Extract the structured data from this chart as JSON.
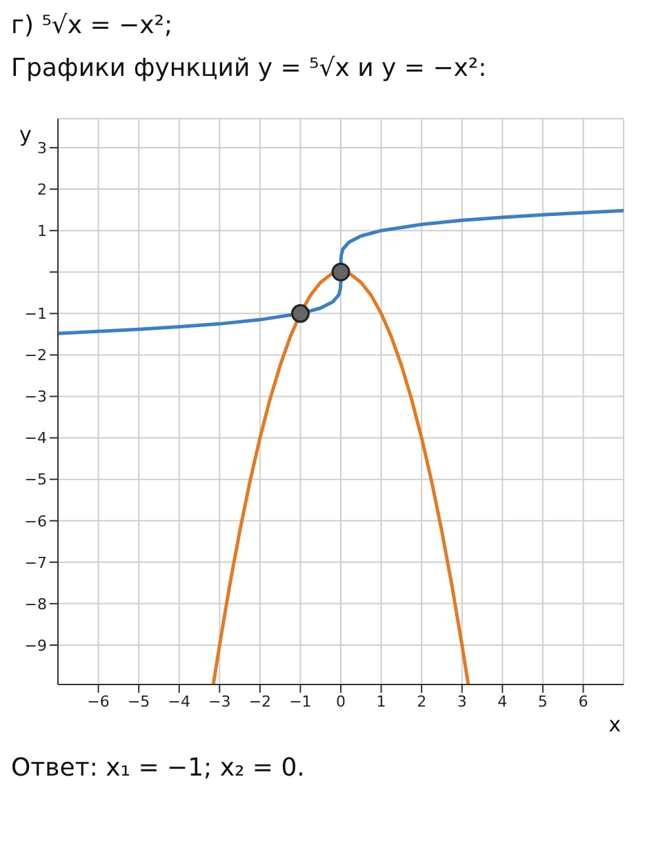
{
  "chart_data": {
    "type": "line",
    "title": "г) ⁵√x = −x²;",
    "subtitle": "Графики функций y = ⁵√x и y = −x²:",
    "xlabel": "x",
    "ylabel": "y",
    "annotations": [
      "Ответ: x₁ = −1; x₂ = 0."
    ],
    "xlim": [
      -7,
      7
    ],
    "ylim": [
      -9.95,
      3.7
    ],
    "xticks": [
      {
        "value": -6,
        "label": "−6"
      },
      {
        "value": -5,
        "label": "−5"
      },
      {
        "value": -4,
        "label": "−4"
      },
      {
        "value": -3,
        "label": "−3"
      },
      {
        "value": -2,
        "label": "−2"
      },
      {
        "value": -1,
        "label": "−1"
      },
      0,
      1,
      2,
      3,
      4,
      5,
      6
    ],
    "yticks": [
      {
        "value": -9,
        "label": "−9"
      },
      {
        "value": -8,
        "label": "−8"
      },
      {
        "value": -7,
        "label": "−7"
      },
      {
        "value": -6,
        "label": "−6"
      },
      {
        "value": -5,
        "label": "−5"
      },
      {
        "value": -4,
        "label": "−4"
      },
      {
        "value": -3,
        "label": "−3"
      },
      {
        "value": -2,
        "label": "−2"
      },
      {
        "value": -1,
        "label": "−1"
      },
      {
        "value": 0,
        "label": null
      },
      1,
      2,
      3
    ],
    "grid": true,
    "marker": "none",
    "line_style": "solid",
    "series": [
      {
        "color": "#3d7fc1",
        "x": [
          -7,
          -6,
          -5,
          -4,
          -3,
          -2,
          -1,
          -0.5,
          -0.2,
          -0.05,
          -0.01,
          -0.001,
          0,
          0.001,
          0.01,
          0.05,
          0.2,
          0.5,
          1,
          2,
          3,
          4,
          5,
          6,
          7
        ],
        "values": [
          -1.48,
          -1.43,
          -1.38,
          -1.32,
          -1.25,
          -1.15,
          -1,
          -0.87,
          -0.72,
          -0.55,
          -0.4,
          -0.25,
          0,
          0.25,
          0.4,
          0.55,
          0.72,
          0.87,
          1,
          1.15,
          1.25,
          1.32,
          1.38,
          1.43,
          1.48
        ]
      },
      {
        "color": "#e07b28",
        "x": [
          -3.15,
          -3,
          -2.75,
          -2.5,
          -2.25,
          -2,
          -1.75,
          -1.5,
          -1.25,
          -1,
          -0.75,
          -0.5,
          -0.25,
          0,
          0.25,
          0.5,
          0.75,
          1,
          1.25,
          1.5,
          1.75,
          2,
          2.25,
          2.5,
          2.75,
          3,
          3.15
        ],
        "values": [
          -9.92,
          -9,
          -7.56,
          -6.25,
          -5.06,
          -4,
          -3.06,
          -2.25,
          -1.56,
          -1,
          -0.56,
          -0.25,
          -0.06,
          0,
          -0.06,
          -0.25,
          -0.56,
          -1,
          -1.56,
          -2.25,
          -3.06,
          -4,
          -5.06,
          -6.25,
          -7.56,
          -9,
          -9.92
        ]
      },
      {
        "type": "scatter",
        "color": "#666666",
        "marker": "circle",
        "x": [
          -1,
          0
        ],
        "values": [
          -1,
          0
        ]
      }
    ]
  }
}
